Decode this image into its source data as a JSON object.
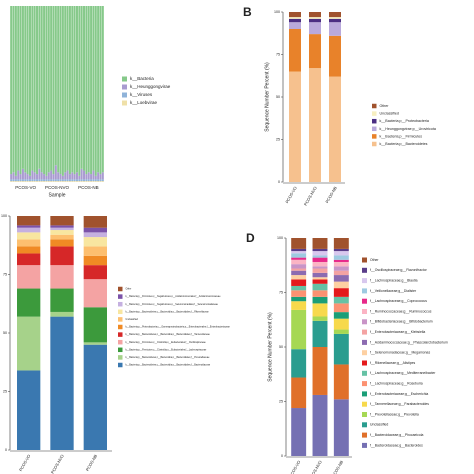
{
  "chart_data": [
    {
      "type": "bar",
      "stacked": true,
      "xlabel": "Sample",
      "x_group_labels": [
        "PCOS-VO",
        "PCOS-NVO",
        "PCOS-NB"
      ],
      "categories": [
        null,
        null,
        null,
        null,
        null,
        null,
        null,
        null,
        null,
        null,
        null,
        null,
        null,
        null,
        null,
        null,
        null,
        null,
        null,
        null,
        null,
        null,
        null,
        null,
        null,
        null,
        null,
        null,
        null,
        null,
        null,
        null,
        null,
        null,
        null,
        null,
        null,
        null,
        null,
        null
      ],
      "ylim": [
        0,
        100
      ],
      "series": [
        {
          "name": "k__Bacteria",
          "color": "#86c98a",
          "values": [
            95.5,
            94.5,
            96.5,
            93.5,
            95.5,
            92.5,
            94.5,
            95.5,
            96.5,
            93.5,
            94.5,
            95.5,
            92.5,
            94.5,
            95.5,
            96.5,
            94.5,
            93.5,
            95.5,
            90.5,
            94.5,
            95.5,
            96.5,
            94.5,
            93.5,
            95.5,
            94.5,
            95.5,
            94.5,
            96.5,
            92.5,
            93.5,
            95.5,
            94.5,
            95.5,
            93.5,
            96.5,
            94.5,
            95.5,
            94.5
          ]
        },
        {
          "name": "k__Heunggongvirae",
          "color": "#a99bd0",
          "values": [
            3,
            4,
            2,
            5,
            3,
            6,
            4,
            3,
            2,
            5,
            4,
            3,
            6,
            4,
            3,
            2,
            4,
            5,
            3,
            8,
            4,
            3,
            2,
            4,
            5,
            3,
            4,
            3,
            4,
            2,
            6,
            5,
            3,
            4,
            3,
            5,
            2,
            4,
            3,
            4
          ]
        },
        {
          "name": "k__Viruses",
          "color": "#8fb3d9",
          "values": [
            1,
            1,
            1,
            1,
            1,
            1,
            1,
            1,
            1,
            1,
            1,
            1,
            1,
            1,
            1,
            1,
            1,
            1,
            1,
            1,
            1,
            1,
            1,
            1,
            1,
            1,
            1,
            1,
            1,
            1,
            1,
            1,
            1,
            1,
            1,
            1,
            1,
            1,
            1,
            1
          ]
        },
        {
          "name": "k__Loebvirae",
          "color": "#efe0a8",
          "values": [
            0.5,
            0.5,
            0.5,
            0.5,
            0.5,
            0.5,
            0.5,
            0.5,
            0.5,
            0.5,
            0.5,
            0.5,
            0.5,
            0.5,
            0.5,
            0.5,
            0.5,
            0.5,
            0.5,
            0.5,
            0.5,
            0.5,
            0.5,
            0.5,
            0.5,
            0.5,
            0.5,
            0.5,
            0.5,
            0.5,
            0.5,
            0.5,
            0.5,
            0.5,
            0.5,
            0.5,
            0.5,
            0.5,
            0.5,
            0.5
          ]
        }
      ]
    },
    {
      "type": "bar",
      "stacked": true,
      "panel_label": "B",
      "ylabel": "Sequence Number Percent (%)",
      "categories": [
        "PCOS-VO",
        "PCOS-NVO",
        "PCOS-NB"
      ],
      "ylim": [
        0,
        100
      ],
      "yticks": [
        0,
        25,
        50,
        75,
        100
      ],
      "series": [
        {
          "name": "Other",
          "color": "#a0522d",
          "values": [
            3,
            3,
            3
          ]
        },
        {
          "name": "Unclassified",
          "color": "#f7efc0",
          "values": [
            1,
            1,
            1
          ]
        },
        {
          "name": "k__Bacteria;p__Proteobacteria",
          "color": "#4b2e83",
          "values": [
            2,
            2,
            2
          ]
        },
        {
          "name": "k__Heunggongvirae;p__Uroviricota",
          "color": "#b9a9dc",
          "values": [
            4,
            7,
            8
          ]
        },
        {
          "name": "k__Bacteria;p__Firmicutes",
          "color": "#e8822a",
          "values": [
            25,
            20,
            24
          ]
        },
        {
          "name": "k__Bacteria;p__Bacteroidetes",
          "color": "#f6c18e",
          "values": [
            65,
            67,
            62
          ]
        }
      ]
    },
    {
      "type": "bar",
      "stacked": true,
      "categories": [
        "PCOS-VO",
        "PCOS-NVO",
        "PCOS-NB"
      ],
      "ylim": [
        0,
        100
      ],
      "yticks": [
        0,
        25,
        50,
        75,
        100
      ],
      "series": [
        {
          "name": "Other",
          "color": "#a0522d",
          "values": [
            4,
            4,
            5
          ]
        },
        {
          "name": "k__Bacteria;p__Firmicutes;c__Negativicutes;o__Acidaminococcales;f__Acidaminococcaceae",
          "color": "#7b52a8",
          "values": [
            1,
            1,
            2
          ]
        },
        {
          "name": "k__Bacteria;p__Firmicutes;c__Negativicutes;o__Selenomonadales;f__Selenomonadaceae",
          "color": "#c5b0e0",
          "values": [
            2,
            1,
            2
          ]
        },
        {
          "name": "k__Bacteria;p__Bacteroidetes;c__Bacteroidia;o__Bacteroidales;f__Rikenellaceae",
          "color": "#f8e6a0",
          "values": [
            3,
            2,
            4
          ]
        },
        {
          "name": "Unclassified",
          "color": "#fdbf6f",
          "values": [
            3,
            2,
            4
          ]
        },
        {
          "name": "k__Bacteria;p__Proteobacteria;c__Gammaproteobacteria;o__Enterobacterales;f__Enterobacteriaceae",
          "color": "#f08a24",
          "values": [
            3,
            3,
            4
          ]
        },
        {
          "name": "k__Bacteria;p__Bacteroidetes;c__Bacteroidia;o__Bacteroidales;f__Tannerellaceae",
          "color": "#d62728",
          "values": [
            5,
            8,
            6
          ]
        },
        {
          "name": "k__Bacteria;p__Firmicutes;c__Clostridia;o__Eubacteriales;f__Oscillospiraceae",
          "color": "#f4a3a3",
          "values": [
            10,
            10,
            12
          ]
        },
        {
          "name": "k__Bacteria;p__Firmicutes;c__Clostridia;o__Eubacteriales;f__Lachnospiraceae",
          "color": "#3c9a3c",
          "values": [
            12,
            10,
            15
          ]
        },
        {
          "name": "k__Bacteria;p__Bacteroidetes;c__Bacteroidia;o__Bacteroidales;f__Prevotellaceae",
          "color": "#a6d28a",
          "values": [
            23,
            2,
            1
          ]
        },
        {
          "name": "k__Bacteria;p__Bacteroidetes;c__Bacteroidia;o__Bacteroidales;f__Bacteroidaceae",
          "color": "#3a78b0",
          "values": [
            34,
            57,
            45
          ]
        }
      ]
    },
    {
      "type": "bar",
      "stacked": true,
      "panel_label": "D",
      "ylabel": "Sequence Number Percent (%)",
      "categories": [
        "PCOS-VO",
        "PCOS-NVO",
        "PCOS-NB"
      ],
      "ylim": [
        0,
        100
      ],
      "yticks": [
        0,
        25,
        50,
        75,
        100
      ],
      "series": [
        {
          "name": "Other",
          "color": "#a0522d",
          "values": [
            5,
            5,
            5
          ]
        },
        {
          "name": "f__Oscillospiraceae;g__Flavonifractor",
          "color": "#5a3d8a",
          "values": [
            1,
            1,
            1
          ]
        },
        {
          "name": "f__Lachnospiraceae;g__Blautia",
          "color": "#d8c8ee",
          "values": [
            1,
            2,
            2
          ]
        },
        {
          "name": "f__Veillonellaceae;g__Dialister",
          "color": "#9ecae1",
          "values": [
            2,
            1,
            2
          ]
        },
        {
          "name": "f__Lachnospiraceae;g__Coprococcus",
          "color": "#e7298a",
          "values": [
            1,
            2,
            1
          ]
        },
        {
          "name": "f__Ruminococcaceae;g__Ruminococcus",
          "color": "#fbb4c4",
          "values": [
            2,
            2,
            2
          ]
        },
        {
          "name": "f__Bifidobacteriaceae;g__Bifidobacterium",
          "color": "#c994c7",
          "values": [
            2,
            1,
            2
          ]
        },
        {
          "name": "f__Enterobacteriaceae;g__Klebsiella",
          "color": "#f4a3a3",
          "values": [
            1,
            2,
            2
          ]
        },
        {
          "name": "f__Acidaminococcaceae;g__Phascolarctobacterium",
          "color": "#8c6bb1",
          "values": [
            2,
            2,
            3
          ]
        },
        {
          "name": "f__Selenomonadaceae;g__Megamonas",
          "color": "#fdd0a2",
          "values": [
            2,
            1,
            3
          ]
        },
        {
          "name": "f__Rikenellaceae;g__Alistipes",
          "color": "#e41a1c",
          "values": [
            3,
            2,
            4
          ]
        },
        {
          "name": "f__Lachnospiraceae;g__Mediterraneibacter",
          "color": "#66c2a5",
          "values": [
            2,
            3,
            3
          ]
        },
        {
          "name": "f__Lachnospiraceae;g__Roseburia",
          "color": "#fc9272",
          "values": [
            3,
            3,
            4
          ]
        },
        {
          "name": "f__Enterobacteriaceae;g__Escherichia",
          "color": "#1b9e77",
          "values": [
            2,
            3,
            3
          ]
        },
        {
          "name": "f__Tannerellaceae;g__Parabacteroides",
          "color": "#f7d94c",
          "values": [
            4,
            6,
            5
          ]
        },
        {
          "name": "f__Prevotellaceae;g__Prevotella",
          "color": "#a6d854",
          "values": [
            18,
            2,
            2
          ]
        },
        {
          "name": "Unclassified",
          "color": "#2a9d8f",
          "values": [
            13,
            12,
            14
          ]
        },
        {
          "name": "f__Bacteroidaceae;g__Phocaeicola",
          "color": "#e0702a",
          "values": [
            14,
            22,
            16
          ]
        },
        {
          "name": "f__Bacteroidaceae;g__Bacteroides",
          "color": "#7570b3",
          "values": [
            22,
            28,
            26
          ]
        }
      ]
    }
  ]
}
